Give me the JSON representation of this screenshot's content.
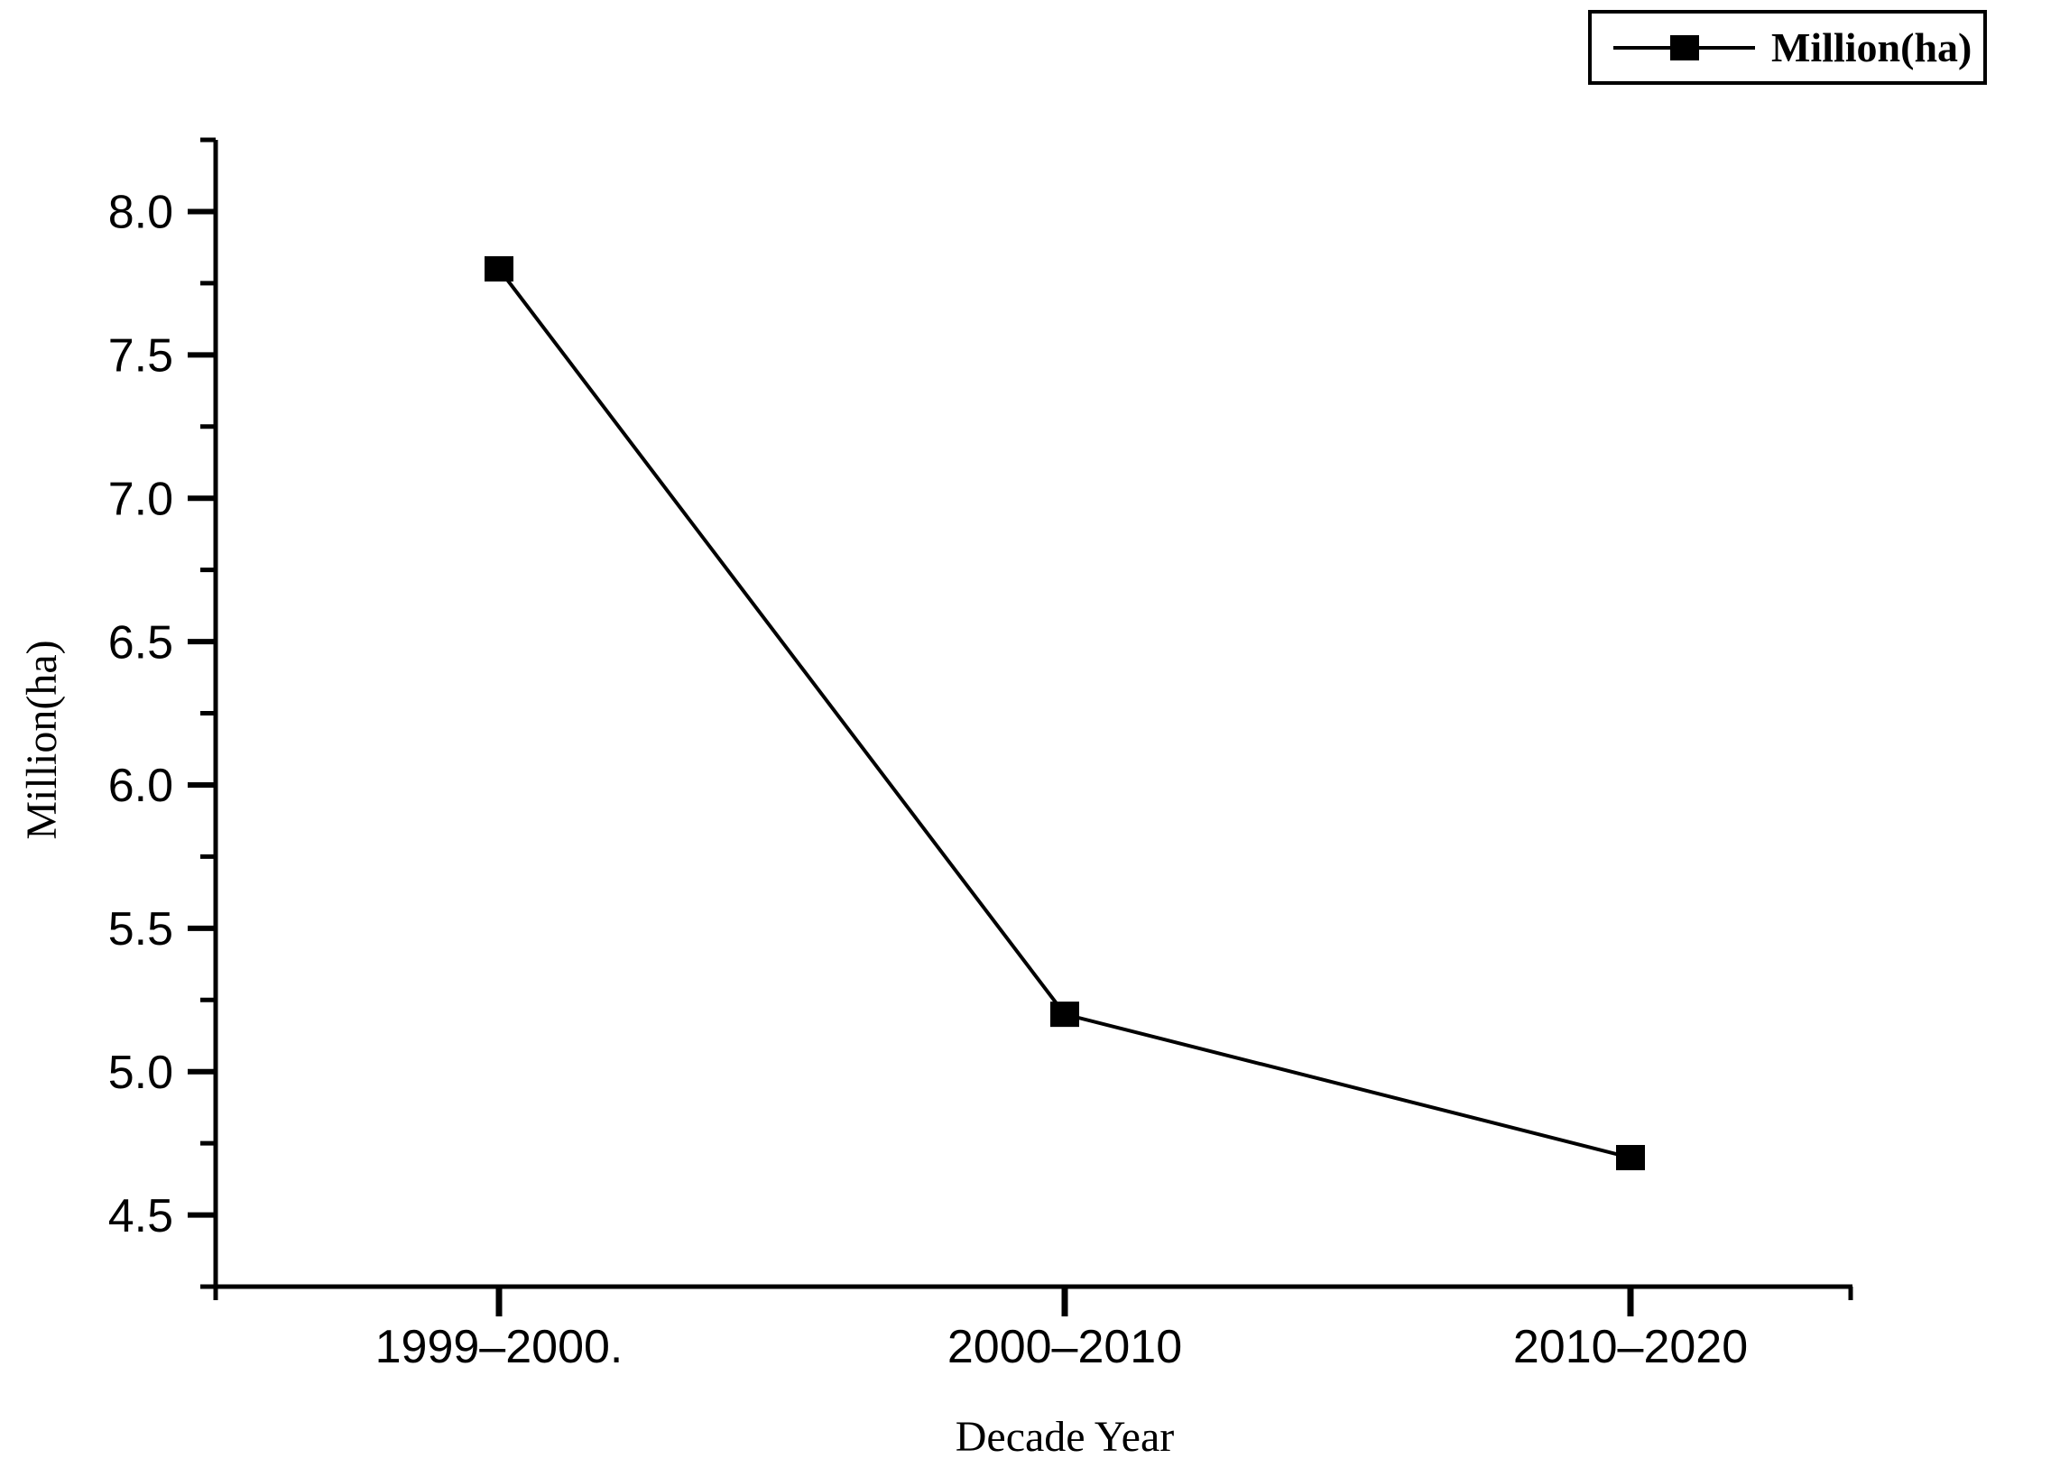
{
  "chart_data": {
    "type": "line",
    "title": "",
    "categories": [
      "1999–2000.",
      "2000–2010",
      "2010–2020"
    ],
    "series": [
      {
        "name": "Million(ha)",
        "values": [
          7.8,
          5.2,
          4.7
        ]
      }
    ],
    "xlabel": "Decade Year",
    "ylabel": "Million(ha)",
    "ylim": [
      4.25,
      8.25
    ],
    "y_major_ticks": [
      8.0,
      7.5,
      7.0,
      6.5,
      6.0,
      5.5,
      5.0,
      4.5
    ],
    "y_minor_ticks": [
      7.75,
      7.25,
      6.75,
      6.25,
      5.75,
      5.25,
      4.75
    ],
    "y_tick_decimals": 1,
    "grid": false,
    "marker": "filled-square",
    "legend": {
      "position": "top-right",
      "entries": [
        "Million(ha)"
      ]
    },
    "colors": {
      "line": "#000000",
      "marker": "#000000",
      "axis": "#000000",
      "text": "#000000",
      "background": "#ffffff"
    }
  },
  "legend": {
    "label": "Million(ha)"
  },
  "axes": {
    "x_title": "Decade Year",
    "y_title": "Million(ha)"
  }
}
